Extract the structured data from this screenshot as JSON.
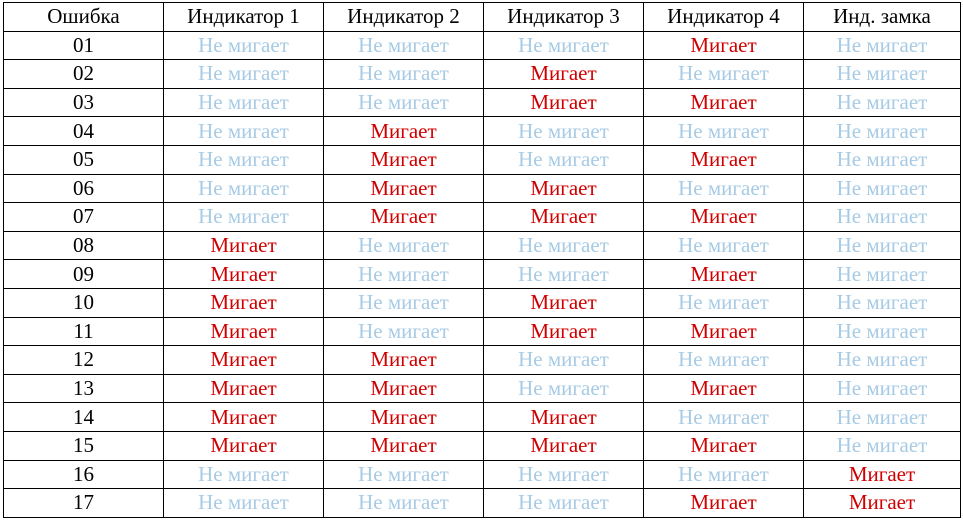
{
  "table": {
    "headers": [
      "Ошибка",
      "Индикатор 1",
      "Индикатор 2",
      "Индикатор 3",
      "Индикатор 4",
      "Инд. замка"
    ],
    "states": {
      "on": "Мигает",
      "off": "Не мигает"
    },
    "colors": {
      "on": "#d00000",
      "off": "#a7cbe5",
      "text": "#000000",
      "border": "#000000"
    },
    "rows": [
      {
        "code": "01",
        "cells": [
          "Не мигает",
          "Не мигает",
          "Не мигает",
          "Мигает",
          "Не мигает"
        ]
      },
      {
        "code": "02",
        "cells": [
          "Не мигает",
          "Не мигает",
          "Мигает",
          "Не мигает",
          "Не мигает"
        ]
      },
      {
        "code": "03",
        "cells": [
          "Не мигает",
          "Не мигает",
          "Мигает",
          "Мигает",
          "Не мигает"
        ]
      },
      {
        "code": "04",
        "cells": [
          "Не мигает",
          "Мигает",
          "Не мигает",
          "Не мигает",
          "Не мигает"
        ]
      },
      {
        "code": "05",
        "cells": [
          "Не мигает",
          "Мигает",
          "Не мигает",
          "Мигает",
          "Не мигает"
        ]
      },
      {
        "code": "06",
        "cells": [
          "Не мигает",
          "Мигает",
          "Мигает",
          "Не мигает",
          "Не мигает"
        ]
      },
      {
        "code": "07",
        "cells": [
          "Не мигает",
          "Мигает",
          "Мигает",
          "Мигает",
          "Не мигает"
        ]
      },
      {
        "code": "08",
        "cells": [
          "Мигает",
          "Не мигает",
          "Не мигает",
          "Не мигает",
          "Не мигает"
        ]
      },
      {
        "code": "09",
        "cells": [
          "Мигает",
          "Не мигает",
          "Не мигает",
          "Мигает",
          "Не мигает"
        ]
      },
      {
        "code": "10",
        "cells": [
          "Мигает",
          "Не мигает",
          "Мигает",
          "Не мигает",
          "Не мигает"
        ]
      },
      {
        "code": "11",
        "cells": [
          "Мигает",
          "Не мигает",
          "Мигает",
          "Мигает",
          "Не мигает"
        ]
      },
      {
        "code": "12",
        "cells": [
          "Мигает",
          "Мигает",
          "Не мигает",
          "Не мигает",
          "Не мигает"
        ]
      },
      {
        "code": "13",
        "cells": [
          "Мигает",
          "Мигает",
          "Не мигает",
          "Мигает",
          "Не мигает"
        ]
      },
      {
        "code": "14",
        "cells": [
          "Мигает",
          "Мигает",
          "Мигает",
          "Не мигает",
          "Не мигает"
        ]
      },
      {
        "code": "15",
        "cells": [
          "Мигает",
          "Мигает",
          "Мигает",
          "Мигает",
          "Не мигает"
        ]
      },
      {
        "code": "16",
        "cells": [
          "Не мигает",
          "Не мигает",
          "Не мигает",
          "Не мигает",
          "Мигает"
        ]
      },
      {
        "code": "17",
        "cells": [
          "Не мигает",
          "Не мигает",
          "Не мигает",
          "Мигает",
          "Мигает"
        ]
      }
    ]
  }
}
